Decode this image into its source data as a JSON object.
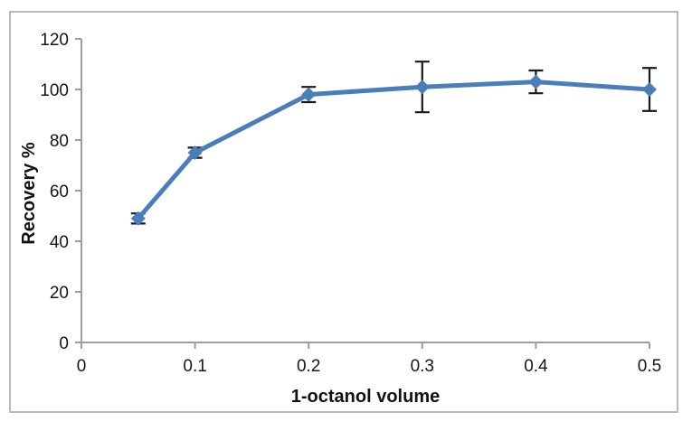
{
  "chart_data": {
    "type": "line",
    "title": "",
    "xlabel": "1-octanol volume",
    "ylabel": "Recovery %",
    "x": [
      0.05,
      0.1,
      0.2,
      0.3,
      0.4,
      0.5
    ],
    "series": [
      {
        "name": "Recovery %",
        "values": [
          49,
          75,
          98,
          101,
          103,
          100
        ],
        "errors": [
          2,
          2,
          3,
          10,
          4.5,
          8.5
        ]
      }
    ],
    "xlim": [
      0,
      0.5
    ],
    "ylim": [
      0,
      120
    ],
    "x_ticks": [
      0,
      0.1,
      0.2,
      0.3,
      0.4,
      0.5
    ],
    "x_tick_labels": [
      "0",
      "0.1",
      "0.2",
      "0.3",
      "0.4",
      "0.5"
    ],
    "y_ticks": [
      0,
      20,
      40,
      60,
      80,
      100,
      120
    ],
    "y_tick_labels": [
      "0",
      "20",
      "40",
      "60",
      "80",
      "100",
      "120"
    ],
    "grid": false,
    "legend": false,
    "marker": "diamond",
    "colors": {
      "line": "#4a7ebb",
      "marker": "#4a7ebb",
      "error_bar": "#1a1a1a",
      "axis": "#9d9d9d",
      "tick_label": "#171717",
      "frame_border": "#b9b9b9",
      "background": "#ffffff"
    }
  }
}
